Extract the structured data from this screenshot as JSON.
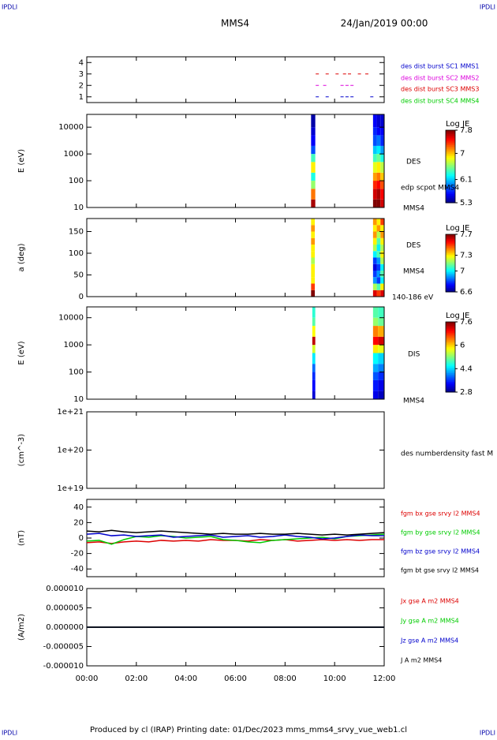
{
  "header": {
    "corner": "IPDLI",
    "title": "MMS4",
    "date": "24/Jan/2019 00:00"
  },
  "footer": "Produced by cl (IRAP)   Printing date: 01/Dec/2023   mms_mms4_srvy_vue_web1.cl",
  "chart_data": [
    {
      "type": "status",
      "ylim": [
        0.5,
        4.5
      ],
      "yticks": [
        1,
        2,
        3,
        4
      ],
      "series": [
        {
          "name": "des dist burst SC1 MMS1",
          "color": "#0000cc",
          "x": [
            9.3,
            9.7,
            10.3,
            10.5,
            10.7,
            11.5
          ],
          "values": [
            1,
            1,
            1,
            1,
            1,
            1
          ]
        },
        {
          "name": "des dist burst SC2 MMS2",
          "color": "#dd00dd",
          "x": [
            9.3,
            9.6,
            10.3,
            10.5,
            10.7
          ],
          "values": [
            2,
            2,
            2,
            2,
            2
          ]
        },
        {
          "name": "des dist burst SC3 MMS3",
          "color": "#dd0000",
          "x": [
            9.3,
            9.7,
            10.1,
            10.4,
            10.6,
            11.0,
            11.3
          ],
          "values": [
            3,
            3,
            3,
            3,
            3,
            3,
            3
          ]
        },
        {
          "name": "des dist burst SC4 MMS4",
          "color": "#00cc00",
          "x": [],
          "values": []
        }
      ]
    },
    {
      "type": "heatmap",
      "ylabel": "E (eV)",
      "log": true,
      "ylim": [
        10,
        30000
      ],
      "yticks": [
        10,
        100,
        1000,
        10000
      ],
      "labels": [
        "DES",
        "edp scpot MMS4",
        "MMS4"
      ],
      "colorbar": {
        "title": "Log JE",
        "clim": [
          5.3,
          7.8
        ],
        "ticks": [
          7.8,
          7.0,
          6.1,
          5.3
        ]
      },
      "xbins": [
        9.05,
        9.22,
        11.55,
        11.7,
        11.85,
        12.0
      ],
      "ybins": [
        10,
        20,
        50,
        100,
        200,
        500,
        1000,
        2000,
        5000,
        10000,
        30000
      ],
      "values": [
        [
          7.7,
          null,
          7.8,
          7.8,
          7.6
        ],
        [
          7.2,
          null,
          7.6,
          7.7,
          7.5
        ],
        [
          6.6,
          null,
          7.4,
          7.5,
          7.3
        ],
        [
          6.3,
          null,
          7.1,
          7.2,
          7.0
        ],
        [
          6.9,
          null,
          6.8,
          6.9,
          6.7
        ],
        [
          6.4,
          null,
          6.4,
          6.5,
          6.3
        ],
        [
          5.8,
          null,
          6.1,
          6.2,
          6.0
        ],
        [
          5.6,
          null,
          5.8,
          5.9,
          5.7
        ],
        [
          5.5,
          null,
          5.7,
          5.6,
          5.6
        ],
        [
          5.4,
          null,
          5.6,
          5.5,
          5.5
        ]
      ]
    },
    {
      "type": "heatmap",
      "ylabel": "a (deg)",
      "ylim": [
        0,
        180
      ],
      "yticks": [
        0,
        50,
        100,
        150
      ],
      "labels": [
        "DES",
        "MMS4",
        "140-186 eV"
      ],
      "colorbar": {
        "title": "Log JE",
        "clim": [
          6.6,
          7.7
        ],
        "ticks": [
          7.7,
          7.3,
          7.0,
          6.6
        ]
      },
      "xbins": [
        9.05,
        9.2,
        11.55,
        11.7,
        11.85,
        12.0
      ],
      "ybins": [
        0,
        15,
        30,
        45,
        60,
        75,
        90,
        105,
        120,
        135,
        150,
        165,
        180
      ],
      "values": [
        [
          7.7,
          null,
          7.6,
          7.5,
          7.6
        ],
        [
          7.5,
          null,
          7.2,
          7.1,
          7.3
        ],
        [
          7.3,
          null,
          6.9,
          6.8,
          7.0
        ],
        [
          7.3,
          null,
          6.8,
          6.9,
          7.1
        ],
        [
          7.3,
          null,
          6.7,
          6.8,
          7.0
        ],
        [
          7.2,
          null,
          6.8,
          6.9,
          7.2
        ],
        [
          7.3,
          null,
          7.0,
          7.1,
          7.3
        ],
        [
          7.3,
          null,
          7.2,
          7.0,
          7.2
        ],
        [
          7.4,
          null,
          7.3,
          7.1,
          7.3
        ],
        [
          7.3,
          null,
          7.4,
          7.2,
          7.4
        ],
        [
          7.4,
          null,
          7.3,
          7.4,
          7.3
        ],
        [
          7.3,
          null,
          7.4,
          7.3,
          7.5
        ]
      ]
    },
    {
      "type": "heatmap",
      "ylabel": "E (eV)",
      "log": true,
      "ylim": [
        10,
        25000
      ],
      "yticks": [
        10,
        100,
        1000,
        10000
      ],
      "labels": [
        "DIS",
        "MMS4"
      ],
      "colorbar": {
        "title": "Log JE",
        "clim": [
          2.8,
          7.6
        ],
        "ticks": [
          7.6,
          6.0,
          4.4,
          2.8
        ]
      },
      "xbins": [
        9.1,
        9.22,
        11.55,
        11.75,
        12.0
      ],
      "ybins": [
        10,
        20,
        50,
        100,
        200,
        500,
        1000,
        2000,
        5000,
        10000,
        25000
      ],
      "values": [
        [
          3.2,
          null,
          3.3,
          3.1
        ],
        [
          3.4,
          null,
          3.5,
          3.3
        ],
        [
          3.6,
          null,
          3.8,
          3.6
        ],
        [
          3.9,
          null,
          4.2,
          4.0
        ],
        [
          4.5,
          null,
          4.6,
          4.4
        ],
        [
          5.6,
          null,
          5.9,
          5.7
        ],
        [
          7.3,
          null,
          7.0,
          7.2
        ],
        [
          5.8,
          null,
          6.4,
          6.2
        ],
        [
          5.0,
          null,
          5.3,
          5.1
        ],
        [
          4.8,
          null,
          5.0,
          4.9
        ]
      ]
    },
    {
      "type": "line",
      "ylabel": "(cm^-3)",
      "log": true,
      "ylim": [
        1e+19,
        1e+21
      ],
      "yticks": [
        {
          "value": 1e+19,
          "label": "1e+19"
        },
        {
          "value": 1e+20,
          "label": "1e+20"
        },
        {
          "value": 1e+21,
          "label": "1e+21"
        }
      ],
      "labels": [
        "des numberdensity fast M"
      ],
      "x": [],
      "series": []
    },
    {
      "type": "line",
      "ylabel": "(nT)",
      "ylim": [
        -50,
        50
      ],
      "yticks": [
        -40,
        -20,
        0,
        20,
        40
      ],
      "x": [
        0,
        0.5,
        1,
        1.5,
        2,
        2.5,
        3,
        3.5,
        4,
        4.5,
        5,
        5.5,
        6,
        6.5,
        7,
        7.5,
        8,
        8.5,
        9,
        9.5,
        10,
        10.5,
        11,
        11.5,
        12
      ],
      "series": [
        {
          "name": "fgm bx gse srvy l2 MMS4",
          "color": "#dd0000",
          "values": [
            -6,
            -5,
            -7,
            -5,
            -4,
            -5,
            -3,
            -4,
            -3,
            -4,
            -2,
            -3,
            -3,
            -4,
            -2,
            -3,
            -2,
            -4,
            -3,
            -2,
            -3,
            -2,
            -3,
            -2,
            -2
          ]
        },
        {
          "name": "fgm by gse srvy l2 MMS4",
          "color": "#00cc00",
          "values": [
            -4,
            -3,
            -8,
            -2,
            2,
            1,
            3,
            2,
            0,
            1,
            2,
            -2,
            -3,
            -5,
            -6,
            -3,
            -2,
            -1,
            0,
            1,
            -1,
            2,
            3,
            4,
            5
          ]
        },
        {
          "name": "fgm bz gse srvy l2 MMS4",
          "color": "#0000cc",
          "values": [
            5,
            6,
            3,
            4,
            2,
            3,
            4,
            1,
            2,
            3,
            4,
            1,
            2,
            3,
            1,
            2,
            4,
            2,
            1,
            -1,
            0,
            2,
            4,
            3,
            3
          ]
        },
        {
          "name": "fgm bt gse srvy l2 MMS4",
          "color": "#000000",
          "values": [
            9,
            8,
            10,
            8,
            7,
            8,
            9,
            8,
            7,
            6,
            5,
            6,
            5,
            5,
            6,
            5,
            5,
            6,
            5,
            4,
            5,
            4,
            5,
            6,
            7
          ]
        }
      ]
    },
    {
      "type": "line",
      "ylabel": "(A/m2)",
      "ylim": [
        -1e-05,
        1e-05
      ],
      "yticks": [
        {
          "value": 1e-05,
          "label": "0.000010"
        },
        {
          "value": 5e-06,
          "label": "0.000005"
        },
        {
          "value": 0,
          "label": "0.000000"
        },
        {
          "value": -5e-06,
          "label": "-0.000005"
        },
        {
          "value": -1e-05,
          "label": "-0.000010"
        }
      ],
      "x": [
        0,
        3,
        6,
        9,
        12
      ],
      "series": [
        {
          "name": "Jx gse A m2 MMS4",
          "color": "#dd0000",
          "values": [
            0,
            0,
            0,
            0,
            0
          ]
        },
        {
          "name": "Jy gse A m2 MMS4",
          "color": "#00cc00",
          "values": [
            0,
            0,
            0,
            0,
            0
          ]
        },
        {
          "name": "Jz gse A m2 MMS4",
          "color": "#0000cc",
          "values": [
            0,
            0,
            0,
            0,
            0
          ]
        },
        {
          "name": "J A m2 MMS4",
          "color": "#000000",
          "values": [
            0,
            0,
            0,
            0,
            0
          ]
        }
      ],
      "xlim": [
        0,
        12
      ],
      "xticks": [
        {
          "value": 0,
          "label": "00:00"
        },
        {
          "value": 2,
          "label": "02:00"
        },
        {
          "value": 4,
          "label": "04:00"
        },
        {
          "value": 6,
          "label": "06:00"
        },
        {
          "value": 8,
          "label": "08:00"
        },
        {
          "value": 10,
          "label": "10:00"
        },
        {
          "value": 12,
          "label": "12:00"
        }
      ]
    }
  ]
}
